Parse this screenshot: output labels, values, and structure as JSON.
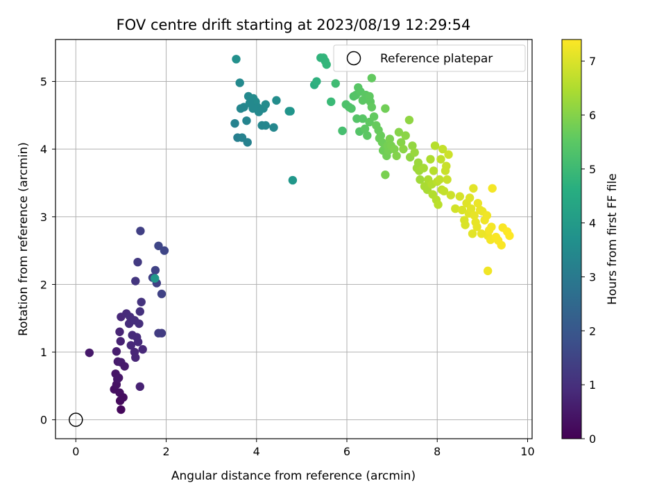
{
  "chart_data": {
    "type": "scatter",
    "title": "FOV centre drift starting at 2023/08/19 12:29:54",
    "xlabel": "Angular distance from reference (arcmin)",
    "ylabel": "Rotation from reference (arcmin)",
    "xlim": [
      -0.45,
      10.1
    ],
    "ylim": [
      -0.28,
      5.62
    ],
    "xticks": [
      0,
      2,
      4,
      6,
      8,
      10
    ],
    "yticks": [
      0,
      1,
      2,
      3,
      4,
      5
    ],
    "grid": true,
    "legend": {
      "location": "upper right",
      "entries": [
        "Reference platepar"
      ]
    },
    "reference_point": {
      "x": 0,
      "y": 0,
      "label": "Reference platepar"
    },
    "colorbar": {
      "label": "Hours from first FF file",
      "colormap": "viridis",
      "range": [
        0,
        7.4
      ],
      "ticks": [
        0,
        1,
        2,
        3,
        4,
        5,
        6,
        7
      ]
    },
    "points": [
      [
        0.3,
        0.99,
        0.5
      ],
      [
        0.85,
        0.45,
        0.3
      ],
      [
        0.9,
        0.52,
        0.35
      ],
      [
        0.92,
        0.6,
        0.4
      ],
      [
        0.88,
        0.68,
        0.4
      ],
      [
        0.95,
        0.62,
        0.45
      ],
      [
        0.97,
        0.4,
        0.3
      ],
      [
        0.98,
        0.28,
        0.2
      ],
      [
        1.0,
        0.15,
        0.15
      ],
      [
        1.05,
        0.33,
        0.25
      ],
      [
        0.9,
        1.01,
        0.6
      ],
      [
        0.93,
        0.86,
        0.55
      ],
      [
        1.0,
        0.85,
        0.6
      ],
      [
        1.08,
        0.79,
        0.55
      ],
      [
        0.97,
        1.3,
        0.75
      ],
      [
        0.99,
        1.16,
        0.7
      ],
      [
        1.0,
        1.52,
        0.85
      ],
      [
        1.12,
        1.57,
        0.9
      ],
      [
        1.2,
        1.52,
        0.95
      ],
      [
        1.18,
        1.42,
        0.95
      ],
      [
        1.25,
        1.25,
        0.9
      ],
      [
        1.22,
        1.1,
        0.85
      ],
      [
        1.3,
        1.0,
        0.8
      ],
      [
        1.32,
        0.92,
        0.8
      ],
      [
        1.35,
        1.22,
        0.9
      ],
      [
        1.38,
        1.15,
        0.9
      ],
      [
        1.3,
        1.47,
        1.0
      ],
      [
        1.4,
        1.42,
        1.0
      ],
      [
        1.42,
        1.6,
        1.05
      ],
      [
        1.45,
        1.74,
        1.1
      ],
      [
        1.48,
        1.04,
        0.85
      ],
      [
        1.42,
        0.49,
        0.7
      ],
      [
        1.32,
        2.05,
        1.15
      ],
      [
        1.37,
        2.33,
        1.25
      ],
      [
        1.43,
        2.79,
        1.4
      ],
      [
        1.7,
        2.1,
        1.4
      ],
      [
        1.76,
        2.21,
        1.45
      ],
      [
        1.79,
        2.02,
        1.4
      ],
      [
        1.75,
        2.09,
        3.9
      ],
      [
        1.83,
        2.57,
        1.55
      ],
      [
        1.96,
        2.5,
        1.55
      ],
      [
        1.9,
        1.86,
        1.45
      ],
      [
        1.83,
        1.28,
        1.3
      ],
      [
        1.9,
        1.28,
        1.3
      ],
      [
        3.55,
        5.33,
        3.7
      ],
      [
        3.63,
        4.98,
        3.5
      ],
      [
        3.58,
        4.17,
        3.2
      ],
      [
        3.52,
        4.38,
        3.3
      ],
      [
        3.68,
        4.17,
        3.25
      ],
      [
        3.8,
        4.1,
        3.25
      ],
      [
        3.65,
        4.6,
        3.4
      ],
      [
        3.72,
        4.62,
        3.4
      ],
      [
        3.78,
        4.42,
        3.35
      ],
      [
        3.82,
        4.78,
        3.5
      ],
      [
        3.88,
        4.7,
        3.5
      ],
      [
        3.93,
        4.75,
        3.55
      ],
      [
        3.98,
        4.7,
        3.55
      ],
      [
        4.02,
        4.62,
        3.5
      ],
      [
        4.05,
        4.55,
        3.5
      ],
      [
        3.92,
        4.6,
        3.5
      ],
      [
        3.85,
        4.68,
        3.5
      ],
      [
        4.12,
        4.35,
        3.4
      ],
      [
        4.2,
        4.35,
        3.4
      ],
      [
        4.15,
        4.6,
        3.5
      ],
      [
        4.2,
        4.66,
        3.55
      ],
      [
        4.38,
        4.32,
        3.45
      ],
      [
        4.44,
        4.72,
        3.6
      ],
      [
        4.72,
        4.56,
        3.8
      ],
      [
        4.75,
        4.56,
        3.85
      ],
      [
        4.8,
        3.54,
        3.9
      ],
      [
        5.28,
        4.95,
        4.6
      ],
      [
        5.33,
        5.0,
        4.7
      ],
      [
        5.42,
        5.35,
        4.8
      ],
      [
        5.48,
        5.35,
        4.85
      ],
      [
        5.52,
        5.3,
        4.85
      ],
      [
        5.55,
        5.25,
        4.9
      ],
      [
        5.65,
        4.7,
        5.0
      ],
      [
        5.75,
        4.97,
        5.1
      ],
      [
        5.9,
        4.27,
        5.2
      ],
      [
        5.98,
        4.66,
        5.3
      ],
      [
        6.05,
        4.62,
        5.3
      ],
      [
        6.1,
        4.6,
        5.35
      ],
      [
        6.15,
        4.78,
        5.35
      ],
      [
        6.2,
        4.8,
        5.4
      ],
      [
        6.25,
        4.91,
        5.45
      ],
      [
        6.3,
        4.85,
        5.45
      ],
      [
        6.35,
        4.72,
        5.5
      ],
      [
        6.42,
        4.8,
        5.5
      ],
      [
        6.5,
        4.78,
        5.55
      ],
      [
        6.52,
        4.7,
        5.55
      ],
      [
        6.55,
        5.05,
        5.6
      ],
      [
        6.22,
        4.45,
        5.4
      ],
      [
        6.28,
        4.26,
        5.4
      ],
      [
        6.35,
        4.45,
        5.45
      ],
      [
        6.4,
        4.3,
        5.5
      ],
      [
        6.45,
        4.2,
        5.5
      ],
      [
        6.5,
        4.4,
        5.55
      ],
      [
        6.55,
        4.62,
        5.6
      ],
      [
        6.6,
        4.48,
        5.6
      ],
      [
        6.65,
        4.35,
        5.65
      ],
      [
        6.7,
        4.28,
        5.65
      ],
      [
        6.72,
        4.16,
        5.7
      ],
      [
        6.75,
        4.2,
        5.7
      ],
      [
        6.78,
        4.1,
        5.75
      ],
      [
        6.8,
        3.98,
        5.75
      ],
      [
        6.85,
        4.6,
        5.8
      ],
      [
        6.88,
        3.9,
        5.8
      ],
      [
        6.9,
        4.05,
        5.85
      ],
      [
        6.92,
        3.98,
        5.85
      ],
      [
        6.95,
        4.15,
        5.9
      ],
      [
        6.98,
        4.05,
        5.9
      ],
      [
        7.05,
        4.0,
        5.95
      ],
      [
        7.1,
        3.9,
        6.0
      ],
      [
        7.15,
        4.25,
        6.05
      ],
      [
        7.2,
        4.1,
        6.05
      ],
      [
        7.25,
        4.0,
        6.1
      ],
      [
        7.3,
        4.2,
        6.1
      ],
      [
        7.38,
        4.43,
        6.15
      ],
      [
        7.4,
        3.88,
        6.15
      ],
      [
        6.85,
        3.62,
        5.9
      ],
      [
        7.45,
        4.05,
        6.2
      ],
      [
        7.5,
        3.95,
        6.25
      ],
      [
        7.55,
        3.72,
        6.3
      ],
      [
        7.58,
        3.8,
        6.3
      ],
      [
        7.6,
        3.68,
        6.35
      ],
      [
        7.62,
        3.55,
        6.35
      ],
      [
        7.7,
        3.72,
        6.4
      ],
      [
        7.72,
        3.45,
        6.45
      ],
      [
        7.78,
        3.4,
        6.45
      ],
      [
        7.8,
        3.55,
        6.5
      ],
      [
        7.85,
        3.85,
        6.5
      ],
      [
        7.88,
        3.48,
        6.55
      ],
      [
        7.9,
        3.33,
        6.55
      ],
      [
        7.92,
        3.68,
        6.6
      ],
      [
        7.95,
        4.05,
        6.6
      ],
      [
        7.98,
        3.25,
        6.6
      ],
      [
        8.0,
        3.52,
        6.65
      ],
      [
        8.02,
        3.18,
        6.65
      ],
      [
        8.05,
        3.55,
        6.7
      ],
      [
        8.08,
        3.85,
        6.7
      ],
      [
        8.1,
        3.4,
        6.7
      ],
      [
        8.12,
        4.0,
        6.75
      ],
      [
        8.15,
        3.38,
        6.75
      ],
      [
        8.18,
        3.68,
        6.8
      ],
      [
        8.2,
        3.75,
        6.8
      ],
      [
        8.22,
        3.55,
        6.8
      ],
      [
        8.25,
        3.92,
        6.85
      ],
      [
        8.3,
        3.32,
        6.85
      ],
      [
        8.4,
        3.12,
        6.9
      ],
      [
        8.5,
        3.3,
        6.95
      ],
      [
        8.55,
        3.1,
        7.0
      ],
      [
        8.6,
        2.95,
        7.0
      ],
      [
        8.62,
        2.88,
        7.0
      ],
      [
        8.65,
        3.2,
        7.05
      ],
      [
        8.7,
        3.05,
        7.05
      ],
      [
        8.72,
        3.28,
        7.05
      ],
      [
        8.75,
        3.12,
        7.1
      ],
      [
        8.78,
        2.75,
        7.1
      ],
      [
        8.8,
        3.42,
        7.1
      ],
      [
        8.82,
        3.02,
        7.15
      ],
      [
        8.85,
        2.92,
        7.15
      ],
      [
        8.88,
        2.85,
        7.15
      ],
      [
        8.9,
        3.2,
        7.2
      ],
      [
        8.95,
        3.1,
        7.2
      ],
      [
        9.0,
        3.08,
        7.2
      ],
      [
        9.05,
        2.95,
        7.25
      ],
      [
        9.1,
        3.02,
        7.25
      ],
      [
        9.12,
        2.72,
        7.25
      ],
      [
        9.15,
        2.8,
        7.3
      ],
      [
        9.18,
        2.66,
        7.3
      ],
      [
        9.2,
        2.85,
        7.3
      ],
      [
        9.22,
        3.42,
        7.3
      ],
      [
        9.3,
        2.7,
        7.35
      ],
      [
        9.35,
        2.65,
        7.35
      ],
      [
        9.42,
        2.58,
        7.35
      ],
      [
        9.45,
        2.84,
        7.35
      ],
      [
        9.55,
        2.78,
        7.4
      ],
      [
        9.6,
        2.72,
        7.4
      ],
      [
        9.12,
        2.2,
        7.25
      ],
      [
        8.98,
        2.75,
        7.2
      ]
    ]
  }
}
